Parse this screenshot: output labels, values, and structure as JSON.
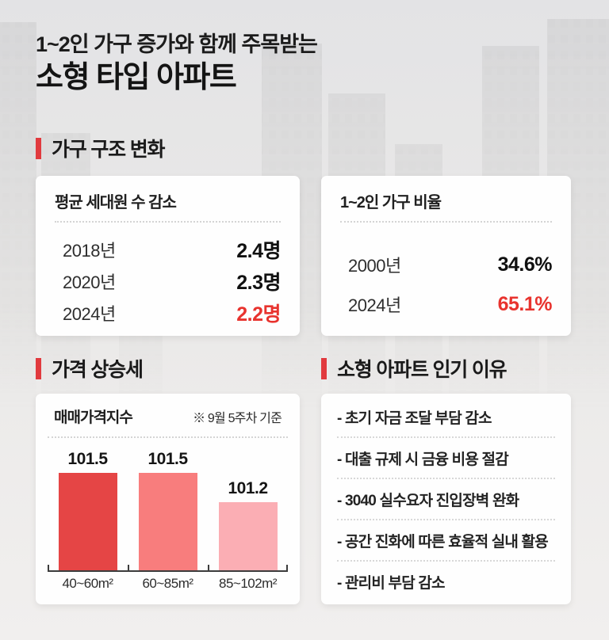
{
  "page": {
    "title_line1": "1~2인 가구 증가와 함께 주목받는",
    "title_line2": "소형 타입 아파트"
  },
  "colors": {
    "accent_red": "#e13a3e",
    "text_red": "#e8332e",
    "bar_strong": "#e54545",
    "bar_medium": "#f87d7d",
    "bar_light": "#fbaeb4"
  },
  "sections": {
    "household": {
      "heading": "가구 구조 변화",
      "cards": [
        {
          "title": "평균 세대원 수 감소",
          "rows": [
            {
              "label": "2018년",
              "value": "2.4명",
              "highlight": false
            },
            {
              "label": "2020년",
              "value": "2.3명",
              "highlight": false
            },
            {
              "label": "2024년",
              "value": "2.2명",
              "highlight": true
            }
          ]
        },
        {
          "title": "1~2인 가구 비율",
          "rows": [
            {
              "label": "2000년",
              "value": "34.6%",
              "highlight": false
            },
            {
              "label": "2024년",
              "value": "65.1%",
              "highlight": true
            }
          ]
        }
      ]
    },
    "price": {
      "heading": "가격 상승세"
    },
    "reasons": {
      "heading": "소형 아파트 인기 이유",
      "items": [
        "- 초기 자금 조달 부담 감소",
        "- 대출 규제 시 금융 비용 절감",
        "- 3040 실수요자 진입장벽 완화",
        "- 공간 진화에 따른 효율적 실내 활용",
        "- 관리비 부담 감소"
      ]
    }
  },
  "chart_data": [
    {
      "type": "table",
      "title": "평균 세대원 수 감소",
      "rows": [
        [
          "2018년",
          "2.4명"
        ],
        [
          "2020년",
          "2.3명"
        ],
        [
          "2024년",
          "2.2명"
        ]
      ]
    },
    {
      "type": "table",
      "title": "1~2인 가구 비율",
      "rows": [
        [
          "2000년",
          "34.6%"
        ],
        [
          "2024년",
          "65.1%"
        ]
      ]
    },
    {
      "type": "bar",
      "title": "매매가격지수",
      "note": "※ 9월 5주차 기준",
      "categories": [
        "40~60m²",
        "60~85m²",
        "85~102m²"
      ],
      "values": [
        101.5,
        101.5,
        101.2
      ],
      "value_labels": [
        "101.5",
        "101.5",
        "101.2"
      ],
      "bar_colors": [
        "#e54545",
        "#f87d7d",
        "#fbaeb4"
      ],
      "ylim": [
        100.5,
        101.6
      ],
      "xlabel": "",
      "ylabel": "매매가격지수",
      "grid": false,
      "legend": false
    }
  ]
}
